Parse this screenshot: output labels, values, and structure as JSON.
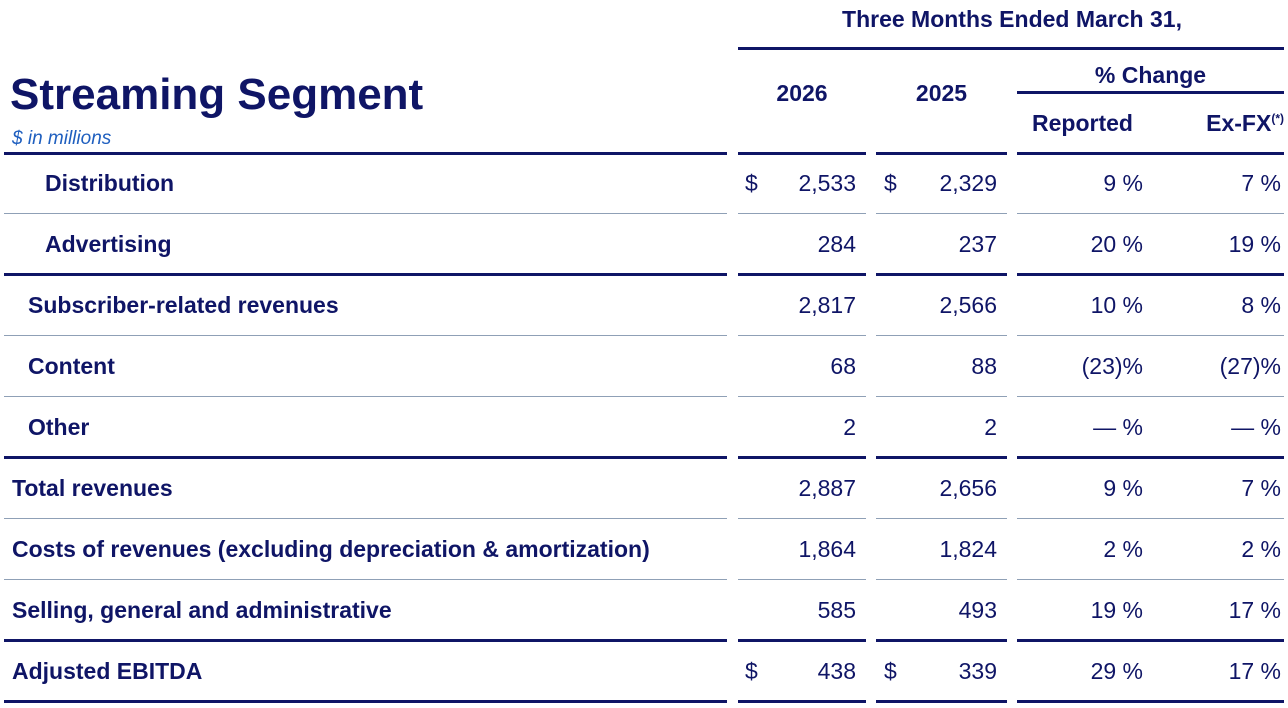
{
  "header": {
    "title": "Streaming Segment",
    "subtitle": "$ in millions",
    "period": "Three Months Ended March 31,",
    "year_current": "2026",
    "year_prior": "2025",
    "pct_change": "% Change",
    "reported": "Reported",
    "exfx": "Ex-FX",
    "exfx_mark": "(*)"
  },
  "rows": [
    {
      "label": "Distribution",
      "c26_sym": "$",
      "c26": "2,533",
      "c25_sym": "$",
      "c25": "2,329",
      "rep": "9 %",
      "fx": "7 %"
    },
    {
      "label": "Advertising",
      "c26_sym": "",
      "c26": "284",
      "c25_sym": "",
      "c25": "237",
      "rep": "20 %",
      "fx": "19 %"
    },
    {
      "label": "Subscriber-related revenues",
      "c26_sym": "",
      "c26": "2,817",
      "c25_sym": "",
      "c25": "2,566",
      "rep": "10 %",
      "fx": "8 %"
    },
    {
      "label": "Content",
      "c26_sym": "",
      "c26": "68",
      "c25_sym": "",
      "c25": "88",
      "rep": "(23)%",
      "fx": "(27)%"
    },
    {
      "label": "Other",
      "c26_sym": "",
      "c26": "2",
      "c25_sym": "",
      "c25": "2",
      "rep": "— %",
      "fx": "— %"
    },
    {
      "label": "Total revenues",
      "c26_sym": "",
      "c26": "2,887",
      "c25_sym": "",
      "c25": "2,656",
      "rep": "9 %",
      "fx": "7 %"
    },
    {
      "label": "Costs of revenues (excluding depreciation & amortization)",
      "c26_sym": "",
      "c26": "1,864",
      "c25_sym": "",
      "c25": "1,824",
      "rep": "2 %",
      "fx": "2 %"
    },
    {
      "label": "Selling, general and administrative",
      "c26_sym": "",
      "c26": "585",
      "c25_sym": "",
      "c25": "493",
      "rep": "19 %",
      "fx": "17 %"
    },
    {
      "label": "Adjusted EBITDA",
      "c26_sym": "$",
      "c26": "438",
      "c25_sym": "$",
      "c25": "339",
      "rep": "29 %",
      "fx": "17 %"
    }
  ]
}
